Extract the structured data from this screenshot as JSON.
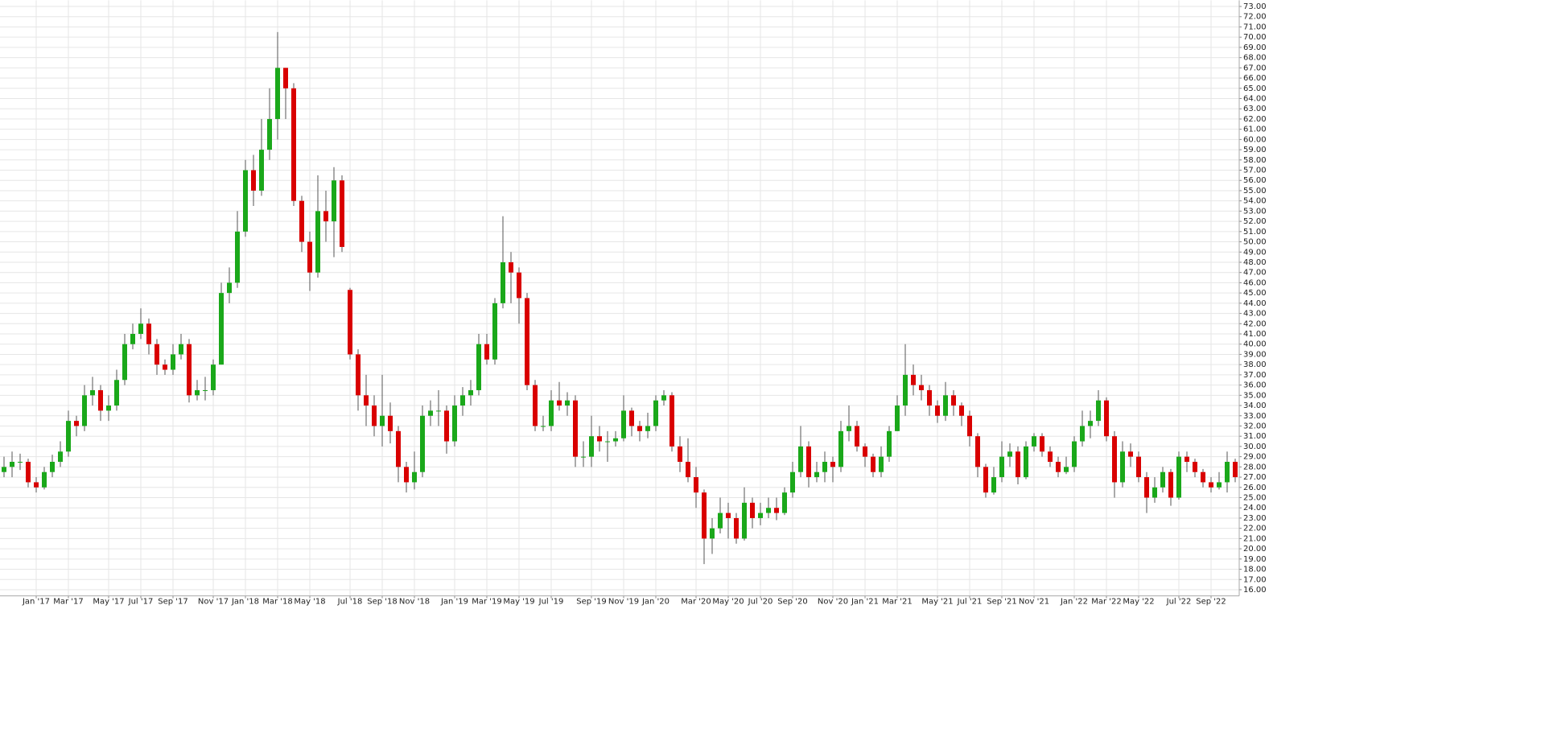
{
  "chart_data": {
    "type": "candlestick",
    "up_color": "#1aa81a",
    "down_color": "#d90000",
    "grid": true,
    "ylim": [
      15.4,
      73.6
    ],
    "yticks": [
      {
        "value": 16,
        "label": "16.00"
      },
      {
        "value": 17,
        "label": "17.00"
      },
      {
        "value": 18,
        "label": "18.00"
      },
      {
        "value": 19,
        "label": "19.00"
      },
      {
        "value": 20,
        "label": "20.00"
      },
      {
        "value": 21,
        "label": "21.00"
      },
      {
        "value": 22,
        "label": "22.00"
      },
      {
        "value": 23,
        "label": "23.00"
      },
      {
        "value": 24,
        "label": "24.00"
      },
      {
        "value": 25,
        "label": "25.00"
      },
      {
        "value": 26,
        "label": "26.00"
      },
      {
        "value": 27,
        "label": "27.00"
      },
      {
        "value": 28,
        "label": "28.00"
      },
      {
        "value": 29,
        "label": "29.00"
      },
      {
        "value": 30,
        "label": "30.00"
      },
      {
        "value": 31,
        "label": "31.00"
      },
      {
        "value": 32,
        "label": "32.00"
      },
      {
        "value": 33,
        "label": "33.00"
      },
      {
        "value": 34,
        "label": "34.00"
      },
      {
        "value": 35,
        "label": "35.00"
      },
      {
        "value": 36,
        "label": "36.00"
      },
      {
        "value": 37,
        "label": "37.00"
      },
      {
        "value": 38,
        "label": "38.00"
      },
      {
        "value": 39,
        "label": "39.00"
      },
      {
        "value": 40,
        "label": "40.00"
      },
      {
        "value": 41,
        "label": "41.00"
      },
      {
        "value": 42,
        "label": "42.00"
      },
      {
        "value": 43,
        "label": "43.00"
      },
      {
        "value": 44,
        "label": "44.00"
      },
      {
        "value": 45,
        "label": "45.00"
      },
      {
        "value": 46,
        "label": "46.00"
      },
      {
        "value": 47,
        "label": "47.00"
      },
      {
        "value": 48,
        "label": "48.00"
      },
      {
        "value": 49,
        "label": "49.00"
      },
      {
        "value": 50,
        "label": "50.00"
      },
      {
        "value": 51,
        "label": "51.00"
      },
      {
        "value": 52,
        "label": "52.00"
      },
      {
        "value": 53,
        "label": "53.00"
      },
      {
        "value": 54,
        "label": "54.00"
      },
      {
        "value": 55,
        "label": "55.00"
      },
      {
        "value": 56,
        "label": "56.00"
      },
      {
        "value": 57,
        "label": "57.00"
      },
      {
        "value": 58,
        "label": "58.00"
      },
      {
        "value": 59,
        "label": "59.00"
      },
      {
        "value": 60,
        "label": "60.00"
      },
      {
        "value": 61,
        "label": "61.00"
      },
      {
        "value": 62,
        "label": "62.00"
      },
      {
        "value": 63,
        "label": "63.00"
      },
      {
        "value": 64,
        "label": "64.00"
      },
      {
        "value": 65,
        "label": "65.00"
      },
      {
        "value": 66,
        "label": "66.00"
      },
      {
        "value": 67,
        "label": "67.00"
      },
      {
        "value": 68,
        "label": "68.00"
      },
      {
        "value": 69,
        "label": "69.00"
      },
      {
        "value": 70,
        "label": "70.00"
      },
      {
        "value": 71,
        "label": "71.00"
      },
      {
        "value": 72,
        "label": "72.00"
      },
      {
        "value": 73,
        "label": "73.00"
      }
    ],
    "categories": [
      null,
      null,
      null,
      null,
      "Jan '17",
      null,
      null,
      null,
      "Mar '17",
      null,
      null,
      null,
      null,
      "May '17",
      null,
      null,
      null,
      "Jul '17",
      null,
      null,
      null,
      "Sep '17",
      null,
      null,
      null,
      null,
      "Nov '17",
      null,
      null,
      null,
      "Jan '18",
      null,
      null,
      null,
      "Mar '18",
      null,
      null,
      null,
      "May '18",
      null,
      null,
      null,
      null,
      "Jul '18",
      null,
      null,
      null,
      "Sep '18",
      null,
      null,
      null,
      "Nov '18",
      null,
      null,
      null,
      null,
      "Jan '19",
      null,
      null,
      null,
      "Mar '19",
      null,
      null,
      null,
      "May '19",
      null,
      null,
      null,
      "Jul '19",
      null,
      null,
      null,
      null,
      "Sep '19",
      null,
      null,
      null,
      "Nov '19",
      null,
      null,
      null,
      "Jan '20",
      null,
      null,
      null,
      null,
      "Mar '20",
      null,
      null,
      null,
      "May '20",
      null,
      null,
      null,
      "Jul '20",
      null,
      null,
      null,
      "Sep '20",
      null,
      null,
      null,
      null,
      "Nov '20",
      null,
      null,
      null,
      "Jan '21",
      null,
      null,
      null,
      "Mar '21",
      null,
      null,
      null,
      null,
      "May '21",
      null,
      null,
      null,
      "Jul '21",
      null,
      null,
      null,
      "Sep '21",
      null,
      null,
      null,
      "Nov '21",
      null,
      null,
      null,
      null,
      "Jan '22",
      null,
      null,
      null,
      "Mar '22",
      null,
      null,
      null,
      "May '22",
      null,
      null,
      null,
      null,
      "Jul '22",
      null,
      null,
      null,
      "Sep '22",
      null,
      null,
      null
    ],
    "open": [
      27.5,
      28,
      28.5,
      28.5,
      26.5,
      26,
      27.5,
      28.5,
      29.5,
      32.5,
      32,
      35,
      35.5,
      33.5,
      34,
      36.5,
      40,
      41,
      42,
      40,
      38,
      37.5,
      39,
      40,
      35,
      35.5,
      35.5,
      38,
      45,
      46,
      51,
      57,
      55,
      59,
      62,
      67,
      65,
      54,
      50,
      47,
      53,
      52,
      56,
      45.3,
      39,
      35,
      34,
      32,
      33,
      31.5,
      28,
      26.5,
      27.5,
      33,
      33.5,
      33.5,
      30.5,
      34,
      35,
      35.5,
      40,
      38.5,
      44,
      48,
      47,
      44.5,
      36,
      32,
      32,
      34.5,
      34,
      34.5,
      29,
      29,
      31,
      30.5,
      30.5,
      30.8,
      33.5,
      32,
      31.5,
      32,
      34.5,
      35,
      30,
      28.5,
      27,
      25.5,
      21,
      22,
      23.5,
      23,
      21,
      24.5,
      23,
      23.5,
      24,
      23.5,
      25.5,
      27.5,
      30,
      27,
      27.5,
      28.5,
      28,
      31.5,
      32,
      30,
      29,
      27.5,
      29,
      31.5,
      34,
      37,
      36,
      35.5,
      34,
      33,
      35,
      34,
      33,
      31,
      28,
      25.5,
      27,
      29,
      29.5,
      27,
      30,
      31,
      29.5,
      28.5,
      27.5,
      28,
      30.5,
      32,
      32.5,
      34.5,
      31,
      26.5,
      29.5,
      29,
      27,
      25,
      26,
      27.5,
      25,
      29,
      28.5,
      27.5,
      26.5,
      26,
      26.5,
      28.5
    ],
    "high": [
      29,
      29.5,
      29.3,
      28.8,
      27,
      28,
      29.2,
      30.5,
      33.5,
      33,
      36,
      36.8,
      36,
      35,
      37.5,
      41,
      42,
      43.5,
      42.5,
      40.5,
      38.5,
      40,
      41,
      40.5,
      36.5,
      36.8,
      38.5,
      46,
      47.5,
      53,
      58,
      58.5,
      62,
      65,
      70.5,
      67,
      65.5,
      54.5,
      51,
      56.5,
      55,
      57.3,
      56.5,
      45.5,
      39.5,
      37,
      35,
      37,
      34.3,
      32,
      28.5,
      29.5,
      34,
      34.5,
      35.5,
      34,
      35,
      35.8,
      36.5,
      41,
      41,
      44.5,
      52.5,
      49,
      47.5,
      45,
      36.5,
      33,
      35.5,
      36.3,
      35.3,
      35,
      30.5,
      33,
      32,
      31.5,
      31.5,
      35,
      33.8,
      32.5,
      33.3,
      35,
      35.5,
      35.3,
      31,
      30.8,
      28,
      25.8,
      23,
      25,
      24.5,
      23.5,
      26,
      25,
      24.5,
      25,
      25,
      26,
      28.5,
      32,
      30.5,
      28.5,
      29.5,
      29,
      32.5,
      34,
      32.5,
      30.3,
      29.3,
      30,
      32,
      35,
      40,
      38,
      37,
      36,
      34.5,
      36.3,
      35.5,
      34.3,
      33.5,
      31.3,
      28.3,
      28,
      30.5,
      30.3,
      30,
      30.5,
      31.3,
      31.3,
      30,
      29,
      29,
      31,
      33.5,
      33.5,
      35.5,
      34.8,
      31.5,
      30.5,
      30.3,
      29.5,
      27.5,
      27,
      28,
      27.8,
      29.5,
      29.5,
      28.8,
      27.8,
      27,
      27.5,
      29.5,
      28.8
    ],
    "low": [
      27,
      27,
      27.7,
      26,
      25.5,
      25.8,
      27,
      28,
      29,
      31,
      31.5,
      34,
      32.5,
      32.5,
      33.5,
      36,
      39.5,
      40.5,
      39,
      37,
      37,
      37,
      38.5,
      34.3,
      34.5,
      34.5,
      35,
      38,
      44,
      45.5,
      50.5,
      53.5,
      54.5,
      58,
      60,
      62,
      53.5,
      49,
      45.2,
      46.5,
      50,
      48.5,
      49,
      38.5,
      33.5,
      32,
      31,
      30,
      30.3,
      26.5,
      25.5,
      25.8,
      27,
      32,
      32,
      29.3,
      30,
      33,
      34,
      35,
      38,
      38,
      43.5,
      44,
      42,
      35.5,
      31.5,
      31.5,
      31.5,
      33.5,
      33,
      28,
      28,
      28,
      29.5,
      28.5,
      30,
      30.5,
      31,
      30.5,
      30.8,
      31.5,
      34,
      29.5,
      27.5,
      26.5,
      24,
      18.5,
      19.5,
      21.5,
      21,
      20.5,
      20.8,
      22,
      22.3,
      23,
      22.8,
      23.3,
      25,
      27,
      26,
      26.5,
      26.5,
      26.5,
      27.5,
      30.5,
      29.5,
      28,
      27,
      27,
      28.5,
      31.5,
      33,
      35,
      34.5,
      33,
      32.3,
      32.5,
      33,
      32,
      30,
      27,
      25,
      25.3,
      26.5,
      28,
      26.3,
      26.8,
      29.5,
      29,
      28,
      27,
      27.3,
      27.5,
      30,
      30.8,
      32,
      30.5,
      25,
      26,
      28,
      26.5,
      23.5,
      24.5,
      25.5,
      24.2,
      24.8,
      27.5,
      27,
      26,
      25.5,
      25.8,
      25.5,
      26.5
    ],
    "close": [
      28,
      28.5,
      28.5,
      26.5,
      26,
      27.5,
      28.5,
      29.5,
      32.5,
      32,
      35,
      35.5,
      33.5,
      34,
      36.5,
      40,
      41,
      42,
      40,
      38,
      37.5,
      39,
      40,
      35,
      35.5,
      35.5,
      38,
      45,
      46,
      51,
      57,
      55,
      59,
      62,
      67,
      65,
      54,
      50,
      47,
      53,
      52,
      56,
      49.5,
      39,
      35,
      34,
      32,
      33,
      31.5,
      28,
      26.5,
      27.5,
      33,
      33.5,
      33.5,
      30.5,
      34,
      35,
      35.5,
      40,
      38.5,
      44,
      48,
      47,
      44.5,
      36,
      32,
      32,
      34.5,
      34,
      34.5,
      29,
      29,
      31,
      30.5,
      30.5,
      30.8,
      33.5,
      32,
      31.5,
      32,
      34.5,
      35,
      30,
      28.5,
      27,
      25.5,
      21,
      22,
      23.5,
      23,
      21,
      24.5,
      23,
      23.5,
      24,
      23.5,
      25.5,
      27.5,
      30,
      27,
      27.5,
      28.5,
      28,
      31.5,
      32,
      30,
      29,
      27.5,
      29,
      31.5,
      34,
      37,
      36,
      35.5,
      34,
      33,
      35,
      34,
      33,
      31,
      28,
      25.5,
      27,
      29,
      29.5,
      27,
      30,
      31,
      29.5,
      28.5,
      27.5,
      28,
      30.5,
      32,
      32.5,
      34.5,
      31,
      26.5,
      29.5,
      29,
      27,
      25,
      26,
      27.5,
      25,
      29,
      28.5,
      27.5,
      26.5,
      26,
      26.5,
      28.5,
      27
    ]
  }
}
